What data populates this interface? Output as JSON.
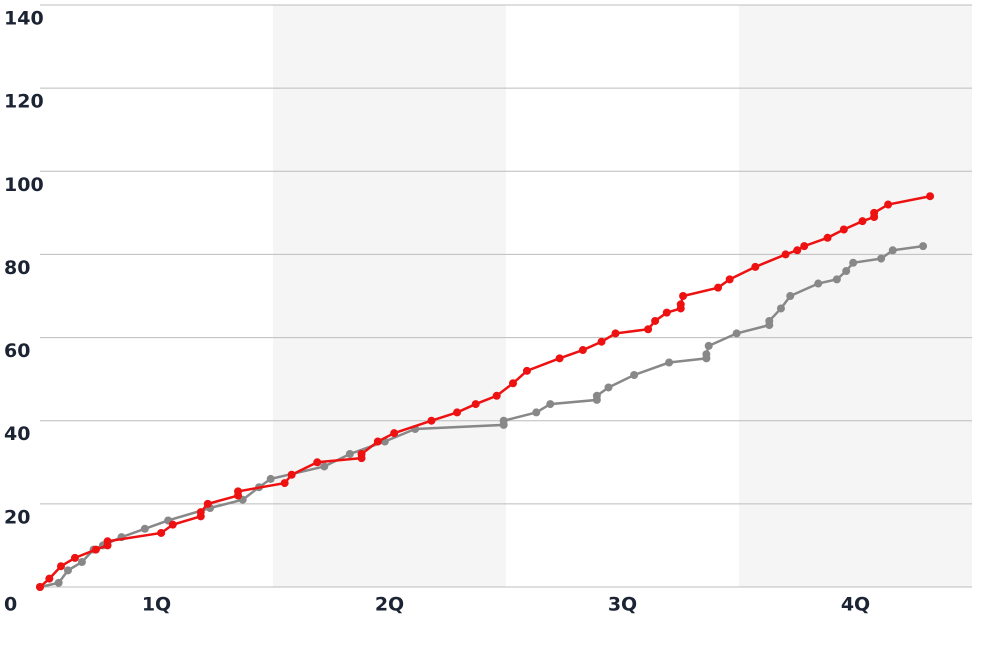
{
  "chart_data": {
    "type": "line",
    "xlim": [
      0,
      4
    ],
    "xticks": [
      {
        "value": 0.5,
        "label": "1Q"
      },
      {
        "value": 1.5,
        "label": "2Q"
      },
      {
        "value": 2.5,
        "label": "3Q"
      },
      {
        "value": 3.5,
        "label": "4Q"
      }
    ],
    "ylim": [
      0,
      140
    ],
    "yticks": [
      0,
      20,
      40,
      60,
      80,
      100,
      120,
      140
    ],
    "grid": true,
    "series": [
      {
        "color": "#ee1111",
        "x": [
          0,
          0.04,
          0.09,
          0.15,
          0.24,
          0.29,
          0.29,
          0.52,
          0.57,
          0.69,
          0.69,
          0.72,
          0.85,
          0.85,
          1.05,
          1.08,
          1.19,
          1.38,
          1.38,
          1.45,
          1.52,
          1.68,
          1.79,
          1.87,
          1.96,
          2.03,
          2.09,
          2.23,
          2.33,
          2.41,
          2.47,
          2.61,
          2.64,
          2.69,
          2.75,
          2.75,
          2.76,
          2.91,
          2.96,
          3.07,
          3.2,
          3.25,
          3.28,
          3.38,
          3.45,
          3.53,
          3.58,
          3.58,
          3.64,
          3.82
        ],
        "values": [
          0,
          2,
          5,
          7,
          9,
          10,
          11,
          13,
          15,
          17,
          18,
          20,
          22,
          23,
          25,
          27,
          30,
          31,
          32,
          35,
          37,
          40,
          42,
          44,
          46,
          49,
          52,
          55,
          57,
          59,
          61,
          62,
          64,
          66,
          67,
          68,
          70,
          72,
          74,
          77,
          80,
          81,
          82,
          84,
          86,
          88,
          89,
          90,
          92,
          94
        ]
      },
      {
        "color": "#888888",
        "x": [
          0,
          0.08,
          0.12,
          0.18,
          0.23,
          0.27,
          0.35,
          0.45,
          0.55,
          0.73,
          0.87,
          0.94,
          0.99,
          1.22,
          1.33,
          1.48,
          1.61,
          1.99,
          1.99,
          2.13,
          2.19,
          2.39,
          2.39,
          2.44,
          2.55,
          2.7,
          2.86,
          2.86,
          2.87,
          2.99,
          3.13,
          3.13,
          3.18,
          3.22,
          3.34,
          3.42,
          3.46,
          3.49,
          3.61,
          3.66,
          3.79
        ],
        "values": [
          0,
          1,
          4,
          6,
          9,
          10,
          12,
          14,
          16,
          19,
          21,
          24,
          26,
          29,
          32,
          35,
          38,
          39,
          40,
          42,
          44,
          45,
          46,
          48,
          51,
          54,
          55,
          56,
          58,
          61,
          63,
          64,
          67,
          70,
          73,
          74,
          76,
          78,
          79,
          81,
          82
        ]
      }
    ]
  }
}
